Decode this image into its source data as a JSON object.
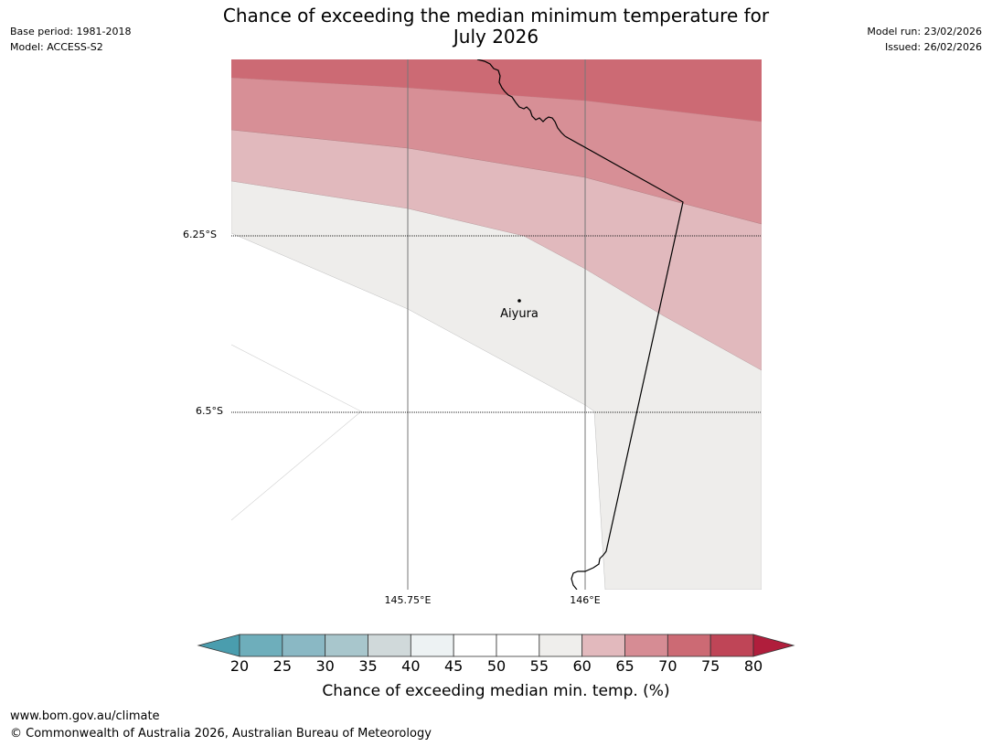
{
  "header": {
    "title_line1": "Chance of exceeding the median minimum temperature for",
    "title_line2": "July 2026",
    "base_period": "Base period: 1981-2018",
    "model": "Model: ACCESS-S2",
    "model_run": "Model run: 23/02/2026",
    "issued": "Issued: 26/02/2026"
  },
  "map": {
    "lat_labels": [
      "6.25°S",
      "6.5°S"
    ],
    "lon_labels": [
      "145.75°E",
      "146°E"
    ],
    "location": "Aiyura",
    "band_colors": [
      "#cc6a74",
      "#d78f96",
      "#e1b9bd",
      "#eeedeb",
      "#ffffff"
    ]
  },
  "colorbar": {
    "ticks": [
      "20",
      "25",
      "30",
      "35",
      "40",
      "45",
      "50",
      "55",
      "60",
      "65",
      "70",
      "75",
      "80"
    ],
    "colors": [
      "#6eaebb",
      "#8ab8c4",
      "#a8c6cc",
      "#d0d9da",
      "#edf2f3",
      "#ffffff",
      "#ffffff",
      "#efeeec",
      "#e2b9bd",
      "#d68c94",
      "#cc6a74",
      "#bf4557"
    ],
    "under_color": "#4a9dae",
    "over_color": "#b01e3c",
    "label": "Chance of exceeding median min. temp. (%)"
  },
  "footer": {
    "url": "www.bom.gov.au/climate",
    "copyright": "© Commonwealth of Australia 2026, Australian Bureau of Meteorology"
  }
}
